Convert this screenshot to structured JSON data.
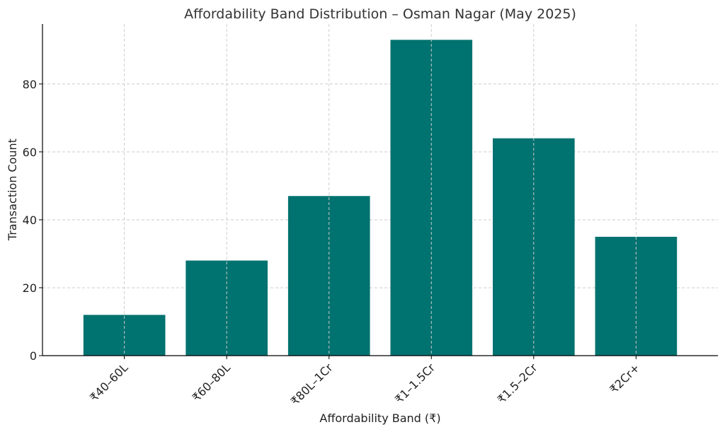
{
  "chart_data": {
    "type": "bar",
    "title": "Affordability Band Distribution – Osman Nagar (May 2025)",
    "xlabel": "Affordability Band (₹)",
    "ylabel": "Transaction Count",
    "categories": [
      "₹40–60L",
      "₹60–80L",
      "₹80L–1Cr",
      "₹1–1.5Cr",
      "₹1.5–2Cr",
      "₹2Cr+"
    ],
    "values": [
      12,
      28,
      47,
      93,
      64,
      35
    ],
    "ylim": [
      0,
      97.65
    ],
    "yticks": [
      0,
      20,
      40,
      60,
      80
    ],
    "bar_color": "#00726f",
    "grid": true
  }
}
